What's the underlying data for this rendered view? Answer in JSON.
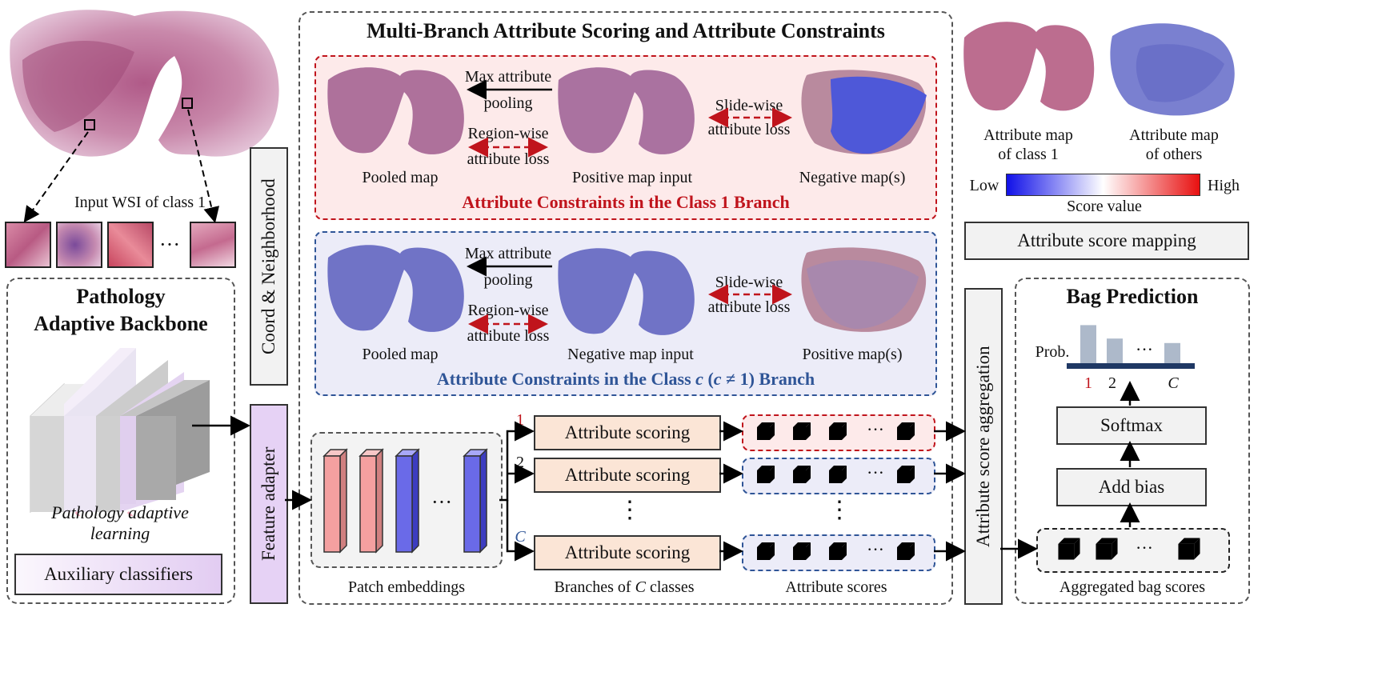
{
  "wsi": {
    "caption": "Input WSI of class 1",
    "dots": "···"
  },
  "backbone": {
    "title_line1": "Pathology",
    "title_line2": "Adaptive Backbone",
    "adaptive_learning": "Pathology adaptive learning",
    "aux": "Auxiliary classifiers"
  },
  "coord": "Coord & Neighborhood",
  "feature_adapter": "Feature adapter",
  "main": {
    "title": "Multi-Branch Attribute Scoring and Attribute Constraints",
    "class1": {
      "title": "Attribute Constraints in the Class 1 Branch",
      "max_pool_1": "Max attribute",
      "max_pool_2": "pooling",
      "region_1": "Region-wise",
      "region_2": "attribute loss",
      "slide_1": "Slide-wise",
      "slide_2": "attribute loss",
      "pooled": "Pooled map",
      "input": "Positive map input",
      "other": "Negative map(s)"
    },
    "classc": {
      "title_a": "Attribute Constraints in the Class ",
      "title_c": "c",
      "title_b": " (",
      "title_c2": "c",
      "title_d": " ≠ 1) Branch",
      "max_pool_1": "Max attribute",
      "max_pool_2": "pooling",
      "region_1": "Region-wise",
      "region_2": "attribute loss",
      "slide_1": "Slide-wise",
      "slide_2": "attribute loss",
      "pooled": "Pooled map",
      "input": "Negative map input",
      "other": "Positive map(s)"
    },
    "branch_labels": [
      "1",
      "2",
      "C"
    ],
    "scoring": "Attribute scoring",
    "patch_embeddings": "Patch embeddings",
    "branches_caption_a": "Branches of ",
    "branches_caption_c": "C",
    "branches_caption_b": " classes",
    "attribute_scores": "Attribute scores",
    "ellipsis": "···",
    "vdots": "⋮"
  },
  "legend": {
    "map1_1": "Attribute map",
    "map1_2": "of class 1",
    "map2_1": "Attribute map",
    "map2_2": "of others",
    "low": "Low",
    "high": "High",
    "score_value": "Score value",
    "mapping": "Attribute score mapping"
  },
  "aggregation": "Attribute score aggregation",
  "bag": {
    "title": "Bag Prediction",
    "prob": "Prob.",
    "ticks": [
      "1",
      "2",
      "C"
    ],
    "dots": "···",
    "softmax": "Softmax",
    "add_bias": "Add bias",
    "aggregated": "Aggregated bag scores",
    "probabilities": [
      0.85,
      0.55,
      0.45
    ]
  },
  "colors": {
    "red": "#c0141c",
    "blue": "#2f5597",
    "pink": "#f4a0a0",
    "violet": "#6a6ae8",
    "orange": "#fbe5d6",
    "purple": "#e6d2f5"
  }
}
